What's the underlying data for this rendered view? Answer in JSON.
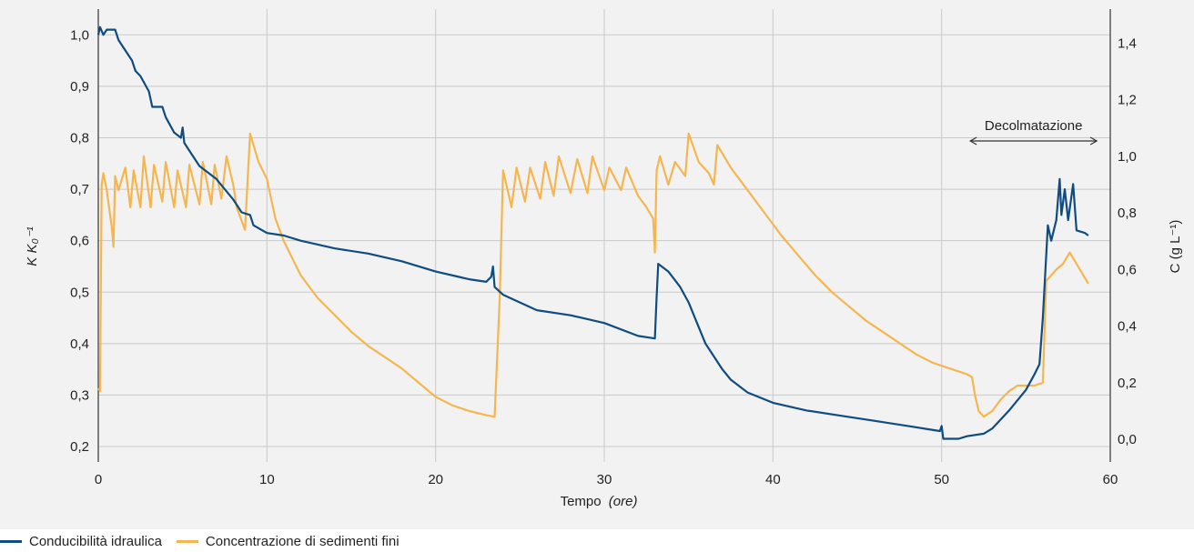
{
  "chart_data": {
    "type": "line",
    "xlabel": "Tempo",
    "xlabel_unit": "(ore)",
    "ylabel_left": "K K₀⁻¹",
    "ylabel_right": "C (g L⁻¹)",
    "xlim": [
      0,
      60
    ],
    "ylim_left": [
      0.17,
      1.05
    ],
    "ylim_right": [
      -0.08,
      1.52
    ],
    "x_ticks": [
      "0",
      "10",
      "20",
      "30",
      "40",
      "50",
      "60"
    ],
    "y_left_ticks": [
      "0,2",
      "0,3",
      "0,4",
      "0,5",
      "0,6",
      "0,7",
      "0,8",
      "0,9",
      "1,0"
    ],
    "y_right_ticks": [
      "0,0",
      "0,2",
      "0,4",
      "0,6",
      "0,8",
      "1,0",
      "1,2",
      "1,4"
    ],
    "grid": true,
    "legend_position": "bottom-left",
    "annotation": {
      "text": "Decolmatazione",
      "x_start": 51.7,
      "x_end": 59.2
    },
    "series": [
      {
        "name": "Conducibilità idraulica",
        "axis": "left",
        "color": "#0f4c81",
        "points": [
          [
            0.0,
            1.0
          ],
          [
            0.1,
            1.015
          ],
          [
            0.3,
            1.0
          ],
          [
            0.5,
            1.01
          ],
          [
            1.0,
            1.01
          ],
          [
            1.2,
            0.99
          ],
          [
            2.0,
            0.95
          ],
          [
            2.2,
            0.93
          ],
          [
            2.5,
            0.92
          ],
          [
            3.0,
            0.89
          ],
          [
            3.2,
            0.86
          ],
          [
            3.8,
            0.86
          ],
          [
            4.0,
            0.84
          ],
          [
            4.5,
            0.81
          ],
          [
            4.9,
            0.8
          ],
          [
            5.0,
            0.82
          ],
          [
            5.1,
            0.79
          ],
          [
            5.5,
            0.77
          ],
          [
            6.0,
            0.745
          ],
          [
            7.0,
            0.72
          ],
          [
            8.0,
            0.68
          ],
          [
            8.5,
            0.655
          ],
          [
            9.0,
            0.65
          ],
          [
            9.2,
            0.63
          ],
          [
            10.0,
            0.615
          ],
          [
            11.0,
            0.61
          ],
          [
            12.0,
            0.6
          ],
          [
            14.0,
            0.585
          ],
          [
            16.0,
            0.575
          ],
          [
            18.0,
            0.56
          ],
          [
            20.0,
            0.54
          ],
          [
            22.0,
            0.525
          ],
          [
            23.0,
            0.52
          ],
          [
            23.3,
            0.53
          ],
          [
            23.4,
            0.55
          ],
          [
            23.5,
            0.51
          ],
          [
            24.0,
            0.495
          ],
          [
            25.0,
            0.48
          ],
          [
            26.0,
            0.465
          ],
          [
            28.0,
            0.455
          ],
          [
            30.0,
            0.44
          ],
          [
            32.0,
            0.415
          ],
          [
            33.0,
            0.41
          ],
          [
            33.1,
            0.49
          ],
          [
            33.2,
            0.555
          ],
          [
            33.8,
            0.54
          ],
          [
            34.5,
            0.51
          ],
          [
            35.0,
            0.48
          ],
          [
            35.5,
            0.44
          ],
          [
            36.0,
            0.4
          ],
          [
            36.5,
            0.375
          ],
          [
            37.0,
            0.35
          ],
          [
            37.5,
            0.33
          ],
          [
            38.5,
            0.305
          ],
          [
            40.0,
            0.285
          ],
          [
            42.0,
            0.27
          ],
          [
            44.0,
            0.26
          ],
          [
            46.0,
            0.25
          ],
          [
            48.0,
            0.24
          ],
          [
            49.9,
            0.23
          ],
          [
            50.0,
            0.24
          ],
          [
            50.1,
            0.215
          ],
          [
            51.0,
            0.215
          ],
          [
            51.5,
            0.22
          ],
          [
            52.5,
            0.225
          ],
          [
            53.0,
            0.235
          ],
          [
            54.0,
            0.27
          ],
          [
            55.0,
            0.31
          ],
          [
            55.5,
            0.34
          ],
          [
            55.8,
            0.36
          ],
          [
            56.0,
            0.45
          ],
          [
            56.3,
            0.63
          ],
          [
            56.5,
            0.6
          ],
          [
            56.8,
            0.64
          ],
          [
            57.0,
            0.72
          ],
          [
            57.1,
            0.65
          ],
          [
            57.3,
            0.7
          ],
          [
            57.5,
            0.64
          ],
          [
            57.8,
            0.71
          ],
          [
            58.0,
            0.62
          ],
          [
            58.5,
            0.615
          ],
          [
            58.7,
            0.61
          ]
        ]
      },
      {
        "name": "Concentrazione di sedimenti fini",
        "axis": "right",
        "color": "#f5b650",
        "points": [
          [
            0.0,
            0.18
          ],
          [
            0.1,
            0.17
          ],
          [
            0.2,
            0.9
          ],
          [
            0.3,
            0.94
          ],
          [
            0.5,
            0.88
          ],
          [
            0.8,
            0.75
          ],
          [
            0.9,
            0.68
          ],
          [
            1.0,
            0.93
          ],
          [
            1.2,
            0.88
          ],
          [
            1.6,
            0.96
          ],
          [
            1.9,
            0.82
          ],
          [
            2.1,
            0.95
          ],
          [
            2.5,
            0.82
          ],
          [
            2.7,
            1.0
          ],
          [
            3.1,
            0.82
          ],
          [
            3.3,
            0.97
          ],
          [
            3.8,
            0.84
          ],
          [
            4.0,
            0.98
          ],
          [
            4.5,
            0.82
          ],
          [
            4.7,
            0.95
          ],
          [
            5.2,
            0.82
          ],
          [
            5.4,
            0.97
          ],
          [
            6.0,
            0.83
          ],
          [
            6.2,
            0.98
          ],
          [
            6.7,
            0.83
          ],
          [
            6.9,
            0.97
          ],
          [
            7.3,
            0.85
          ],
          [
            7.6,
            1.0
          ],
          [
            8.0,
            0.9
          ],
          [
            8.2,
            0.82
          ],
          [
            8.7,
            0.74
          ],
          [
            9.0,
            1.08
          ],
          [
            9.5,
            0.98
          ],
          [
            10.0,
            0.92
          ],
          [
            10.5,
            0.78
          ],
          [
            11.0,
            0.7
          ],
          [
            12.0,
            0.58
          ],
          [
            13.0,
            0.5
          ],
          [
            14.0,
            0.44
          ],
          [
            15.0,
            0.38
          ],
          [
            16.0,
            0.33
          ],
          [
            17.0,
            0.29
          ],
          [
            18.0,
            0.25
          ],
          [
            19.0,
            0.2
          ],
          [
            20.0,
            0.15
          ],
          [
            21.0,
            0.12
          ],
          [
            22.0,
            0.1
          ],
          [
            23.0,
            0.085
          ],
          [
            23.5,
            0.08
          ],
          [
            23.8,
            0.5
          ],
          [
            24.0,
            0.95
          ],
          [
            24.5,
            0.82
          ],
          [
            24.8,
            0.96
          ],
          [
            25.3,
            0.84
          ],
          [
            25.6,
            0.96
          ],
          [
            26.2,
            0.85
          ],
          [
            26.5,
            0.98
          ],
          [
            27.0,
            0.86
          ],
          [
            27.3,
            1.0
          ],
          [
            28.0,
            0.87
          ],
          [
            28.4,
            0.99
          ],
          [
            29.0,
            0.87
          ],
          [
            29.3,
            1.0
          ],
          [
            30.0,
            0.88
          ],
          [
            30.3,
            0.96
          ],
          [
            31.0,
            0.88
          ],
          [
            31.3,
            0.96
          ],
          [
            32.0,
            0.86
          ],
          [
            32.5,
            0.82
          ],
          [
            32.9,
            0.78
          ],
          [
            33.0,
            0.66
          ],
          [
            33.1,
            0.95
          ],
          [
            33.3,
            1.0
          ],
          [
            33.8,
            0.9
          ],
          [
            34.2,
            0.98
          ],
          [
            34.8,
            0.93
          ],
          [
            35.0,
            1.08
          ],
          [
            35.6,
            0.98
          ],
          [
            36.2,
            0.94
          ],
          [
            36.5,
            0.9
          ],
          [
            36.7,
            1.04
          ],
          [
            37.5,
            0.96
          ],
          [
            38.5,
            0.88
          ],
          [
            39.5,
            0.8
          ],
          [
            40.5,
            0.72
          ],
          [
            41.5,
            0.65
          ],
          [
            42.5,
            0.58
          ],
          [
            43.5,
            0.52
          ],
          [
            44.5,
            0.47
          ],
          [
            45.5,
            0.42
          ],
          [
            46.5,
            0.38
          ],
          [
            47.5,
            0.34
          ],
          [
            48.5,
            0.3
          ],
          [
            49.5,
            0.27
          ],
          [
            50.5,
            0.25
          ],
          [
            51.5,
            0.23
          ],
          [
            51.8,
            0.22
          ],
          [
            52.0,
            0.15
          ],
          [
            52.2,
            0.1
          ],
          [
            52.5,
            0.08
          ],
          [
            53.0,
            0.1
          ],
          [
            53.5,
            0.14
          ],
          [
            54.0,
            0.17
          ],
          [
            54.5,
            0.19
          ],
          [
            55.0,
            0.19
          ],
          [
            55.5,
            0.19
          ],
          [
            56.0,
            0.2
          ],
          [
            56.2,
            0.56
          ],
          [
            56.8,
            0.6
          ],
          [
            57.2,
            0.62
          ],
          [
            57.6,
            0.66
          ],
          [
            58.0,
            0.62
          ],
          [
            58.4,
            0.58
          ],
          [
            58.7,
            0.55
          ]
        ]
      }
    ]
  }
}
